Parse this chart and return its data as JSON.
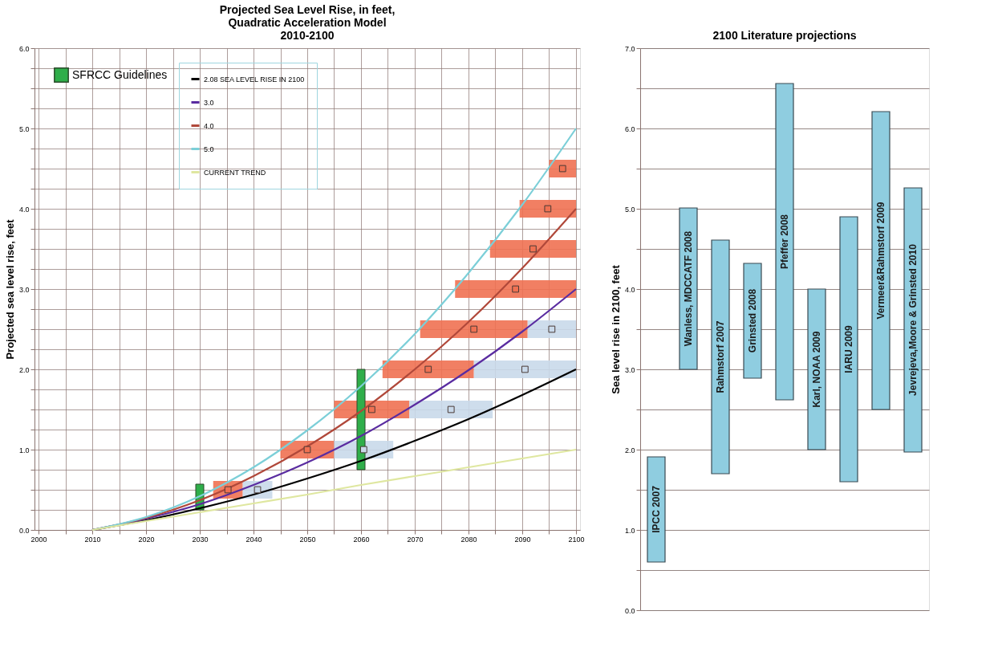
{
  "chart_data": [
    {
      "type": "line",
      "title": "Projected Sea Level Rise, in feet,\nQuadratic Acceleration Model\n2010-2100",
      "ylabel": "Projected sea level rise, feet",
      "x": [
        2010,
        2020,
        2030,
        2040,
        2050,
        2060,
        2070,
        2080,
        2090,
        2100
      ],
      "xlim": [
        2000,
        2100
      ],
      "xticks": [
        2000,
        {
          "value": 2005,
          "label": null
        },
        2010,
        {
          "value": 2015,
          "label": null
        },
        2020,
        {
          "value": 2025,
          "label": null
        },
        2030,
        {
          "value": 2035,
          "label": null
        },
        2040,
        {
          "value": 2045,
          "label": null
        },
        2050,
        {
          "value": 2055,
          "label": null
        },
        2060,
        {
          "value": 2065,
          "label": null
        },
        2070,
        {
          "value": 2075,
          "label": null
        },
        2080,
        {
          "value": 2085,
          "label": null
        },
        2090,
        {
          "value": 2095,
          "label": null
        },
        2100
      ],
      "ylim": [
        0,
        6
      ],
      "yticks": [
        {
          "value": 0,
          "label": "0.0"
        },
        {
          "value": 0.25,
          "label": null
        },
        {
          "value": 0.5,
          "label": null
        },
        {
          "value": 0.75,
          "label": null
        },
        {
          "value": 1,
          "label": "1.0"
        },
        {
          "value": 1.25,
          "label": null
        },
        {
          "value": 1.5,
          "label": null
        },
        {
          "value": 1.75,
          "label": null
        },
        {
          "value": 2,
          "label": "2.0"
        },
        {
          "value": 2.25,
          "label": null
        },
        {
          "value": 2.5,
          "label": null
        },
        {
          "value": 2.75,
          "label": null
        },
        {
          "value": 3,
          "label": "3.0"
        },
        {
          "value": 3.25,
          "label": null
        },
        {
          "value": 3.5,
          "label": null
        },
        {
          "value": 3.75,
          "label": null
        },
        {
          "value": 4,
          "label": "4.0"
        },
        {
          "value": 4.25,
          "label": null
        },
        {
          "value": 4.5,
          "label": null
        },
        {
          "value": 4.75,
          "label": null
        },
        {
          "value": 5,
          "label": "5.0"
        },
        {
          "value": 5.25,
          "label": null
        },
        {
          "value": 5.5,
          "label": null
        },
        {
          "value": 5.75,
          "label": null
        },
        {
          "value": 6,
          "label": "6.0"
        }
      ],
      "grid": true,
      "legend": "top left",
      "series": [
        {
          "name": "2.08 SEA LEVEL RISE IN 2100",
          "color": "#000000",
          "values": [
            0,
            0.12,
            0.27,
            0.44,
            0.64,
            0.86,
            1.11,
            1.38,
            1.68,
            2.0
          ]
        },
        {
          "name": "3.0",
          "color": "#5a2ca0",
          "values": [
            0,
            0.14,
            0.32,
            0.56,
            0.84,
            1.17,
            1.56,
            1.99,
            2.47,
            3.0
          ]
        },
        {
          "name": "4.0",
          "color": "#b0483a",
          "values": [
            0,
            0.15,
            0.37,
            0.67,
            1.04,
            1.48,
            2.0,
            2.59,
            3.26,
            4.0
          ]
        },
        {
          "name": "5.0",
          "color": "#7ccfd8",
          "values": [
            0,
            0.16,
            0.42,
            0.78,
            1.24,
            1.79,
            2.44,
            3.2,
            4.05,
            5.0
          ]
        },
        {
          "name": "CURRENT TREND",
          "color": "#dfe7a0",
          "values": [
            0,
            0.11,
            0.22,
            0.33,
            0.44,
            0.56,
            0.67,
            0.78,
            0.89,
            1.0
          ]
        },
        {
          "type": "scatter",
          "marker": "square",
          "color": "#f07152",
          "x": [
            2035.25,
            2050,
            2062,
            2072.5,
            2081,
            2088.75,
            2092,
            2094.75,
            2097.5
          ],
          "values": [
            0.5,
            1,
            1.5,
            2,
            2.5,
            3,
            3.5,
            4,
            4.5
          ],
          "xerrors": [
            [
              2032.5,
              2038
            ],
            [
              2045,
              2055
            ],
            [
              2055,
              2069
            ],
            [
              2064,
              2081
            ],
            [
              2071,
              2091
            ],
            [
              2077.5,
              2100
            ],
            [
              2084,
              2100
            ],
            [
              2089.5,
              2100
            ],
            [
              2095,
              2100
            ]
          ]
        },
        {
          "type": "scatter",
          "marker": "square",
          "color": "#c9d9ea",
          "x": [
            2040.75,
            2060.5,
            2076.75,
            2090.5,
            2095.5
          ],
          "values": [
            0.5,
            1,
            1.5,
            2,
            2.5
          ],
          "xerrors": [
            [
              2038,
              2043.5
            ],
            [
              2055,
              2066
            ],
            [
              2069,
              2084.5
            ],
            [
              2081,
              2100
            ],
            [
              2091,
              2100
            ]
          ]
        },
        {
          "type": "bar",
          "name": "SFRCC Guidelines",
          "color": "#2fae4a",
          "x": [
            2030,
            2060
          ],
          "base": [
            0.25,
            0.75
          ],
          "values": [
            0.32,
            1.25
          ]
        }
      ]
    },
    {
      "type": "bar",
      "title": "2100 Literature projections",
      "ylabel": "Sea level rise in 2100, feet",
      "categories": [
        "IPCC 2007",
        "Wanless, MDCCATF 2008",
        "Rahmstorf 2007",
        "Grinsted 2008",
        "Pfeffer 2008",
        "Karl, NOAA 2009",
        "IARU 2009",
        "Vermeer&Rahmstorf 2009",
        "Jevrejeva,Moore & Grinsted 2010"
      ],
      "base": [
        0.6,
        3.0,
        1.7,
        2.89,
        2.62,
        2.0,
        1.6,
        2.5,
        1.97
      ],
      "values": [
        1.31,
        2.01,
        2.91,
        1.43,
        3.94,
        2.0,
        3.3,
        3.71,
        3.29
      ],
      "color": "#8fcde0",
      "ylim": [
        0,
        7
      ],
      "yticks": [
        {
          "value": 0,
          "label": "0.0"
        },
        {
          "value": 0.5,
          "label": null
        },
        {
          "value": 1,
          "label": "1.0"
        },
        {
          "value": 1.5,
          "label": null
        },
        {
          "value": 2,
          "label": "2.0"
        },
        {
          "value": 2.5,
          "label": null
        },
        {
          "value": 3,
          "label": "3.0"
        },
        {
          "value": 3.5,
          "label": null
        },
        {
          "value": 4,
          "label": "4.0"
        },
        {
          "value": 4.5,
          "label": null
        },
        {
          "value": 5,
          "label": "5.0"
        },
        {
          "value": 5.5,
          "label": null
        },
        {
          "value": 6,
          "label": "6.0"
        },
        {
          "value": 6.5,
          "label": null
        },
        {
          "value": 7,
          "label": "7.0"
        }
      ],
      "grid": "y",
      "tick_labels": "y"
    }
  ]
}
